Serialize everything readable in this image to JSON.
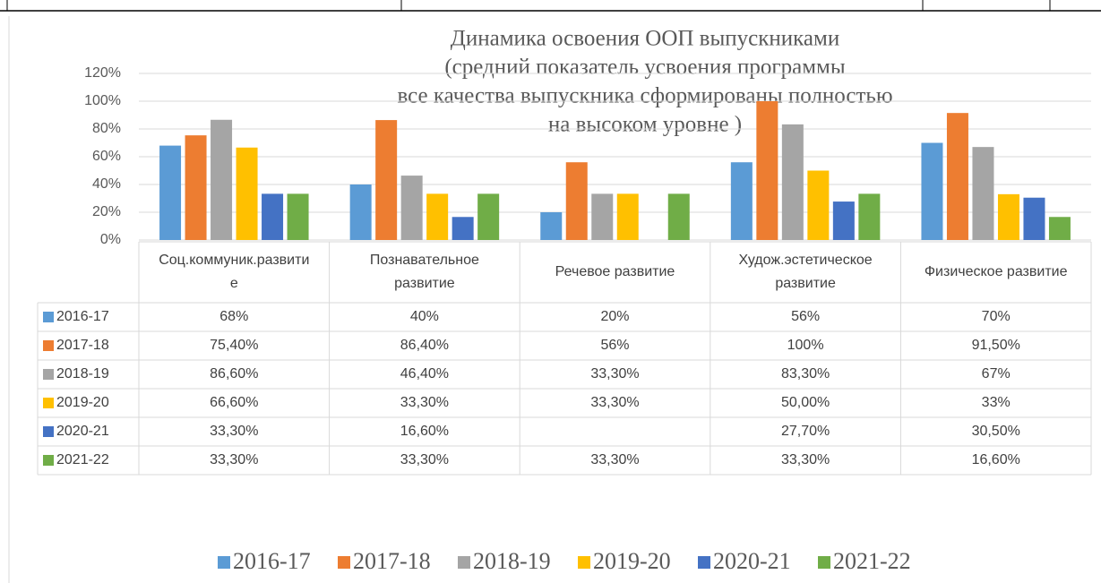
{
  "chart_data": {
    "type": "bar",
    "title": [
      "Динамика освоения ООП  выпускниками",
      "(средний показатель усвоения программы",
      "все качества выпускника сформированы полностью",
      "на высоком уровне )"
    ],
    "categories": [
      "Соц.коммуник.развитие",
      "Познавательное развитие",
      "Речевое развитие",
      "Худож.эстетическое развитие",
      "Физическое развитие"
    ],
    "series": [
      {
        "name": "2016-17",
        "color": "#5b9bd5",
        "values": [
          68,
          40,
          20,
          56,
          70
        ],
        "value_labels": [
          "68%",
          "40%",
          "20%",
          "56%",
          "70%"
        ]
      },
      {
        "name": "2017-18",
        "color": "#ed7d31",
        "values": [
          75.4,
          86.4,
          56,
          100,
          91.5
        ],
        "value_labels": [
          "75,40%",
          "86,40%",
          "56%",
          "100%",
          "91,50%"
        ]
      },
      {
        "name": "2018-19",
        "color": "#a5a5a5",
        "values": [
          86.6,
          46.4,
          33.3,
          83.3,
          67
        ],
        "value_labels": [
          "86,60%",
          "46,40%",
          "33,30%",
          "83,30%",
          "67%"
        ]
      },
      {
        "name": "2019-20",
        "color": "#ffc000",
        "values": [
          66.6,
          33.3,
          33.3,
          50.0,
          33
        ],
        "value_labels": [
          "66,60%",
          "33,30%",
          "33,30%",
          "50,00%",
          "33%"
        ]
      },
      {
        "name": "2020-21",
        "color": "#4472c4",
        "values": [
          33.3,
          16.6,
          null,
          27.7,
          30.5
        ],
        "value_labels": [
          "33,30%",
          "16,60%",
          null,
          "27,70%",
          "30,50%"
        ]
      },
      {
        "name": "2021-22",
        "color": "#70ad47",
        "values": [
          33.3,
          33.3,
          33.3,
          33.3,
          16.6
        ],
        "value_labels": [
          "33,30%",
          "33,30%",
          "33,30%",
          "33,30%",
          "16,60%"
        ]
      }
    ],
    "ylim": [
      0,
      120
    ],
    "yticks": [
      {
        "value": 0,
        "label": "0%"
      },
      {
        "value": 20,
        "label": "20%"
      },
      {
        "value": 40,
        "label": "40%"
      },
      {
        "value": 60,
        "label": "60%"
      },
      {
        "value": 80,
        "label": "80%"
      },
      {
        "value": 100,
        "label": "100%"
      },
      {
        "value": 120,
        "label": "120%"
      }
    ],
    "grid": true,
    "legend": "bottom"
  }
}
